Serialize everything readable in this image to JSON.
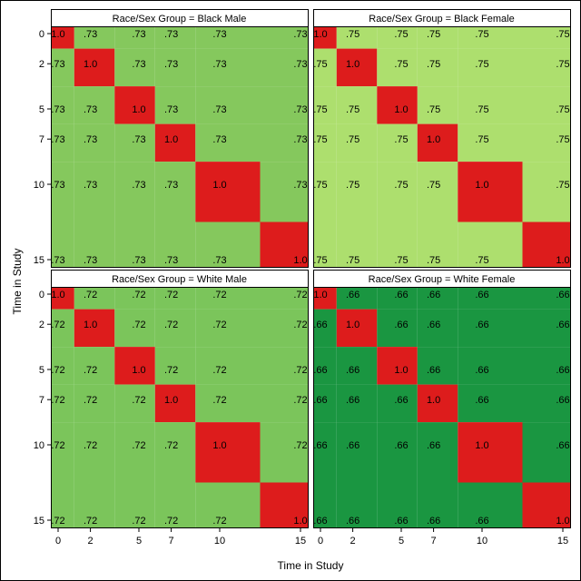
{
  "chart_data": {
    "type": "heatmap",
    "xlabel": "Time in Study",
    "ylabel": "Time in Study",
    "times": [
      0,
      2,
      5,
      7,
      10,
      15
    ],
    "tick_labels": [
      "0",
      "2",
      "5",
      "7",
      "10",
      "15"
    ],
    "xlim": [
      0,
      15
    ],
    "ylim": [
      0,
      15
    ],
    "diagonal_label": "1.0",
    "diagonal_color": "#dd1c1c",
    "panels": [
      {
        "title": "Race/Sex Group = Black Male",
        "correlation": 0.73,
        "offdiag_label": ".73",
        "offdiag_color": "#85c85d"
      },
      {
        "title": "Race/Sex Group = Black Female",
        "correlation": 0.75,
        "offdiag_label": ".75",
        "offdiag_color": "#addf6e"
      },
      {
        "title": "Race/Sex Group = White Male",
        "correlation": 0.72,
        "offdiag_label": ".72",
        "offdiag_color": "#7bc55b"
      },
      {
        "title": "Race/Sex Group = White Female",
        "correlation": 0.66,
        "offdiag_label": ".66",
        "offdiag_color": "#1a9641"
      }
    ]
  }
}
